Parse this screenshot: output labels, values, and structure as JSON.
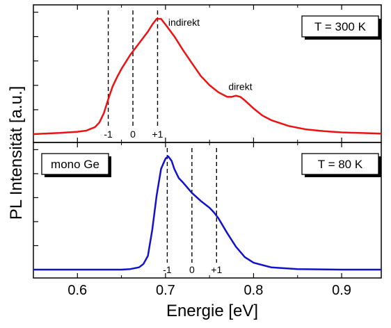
{
  "chart_data": {
    "type": "line",
    "xlabel": "Energie [eV]",
    "ylabel": "PL Intensität [a.u.]",
    "xlim": [
      0.55,
      0.945
    ],
    "xticks": [
      0.6,
      0.7,
      0.8,
      0.9
    ],
    "xtick_labels": [
      "0.6",
      "0.7",
      "0.8",
      "0.9"
    ],
    "panels": [
      {
        "position": "top",
        "color": "#ee1111",
        "temperature_label": "T = 300 K",
        "ylim": [
          0,
          1.05
        ],
        "x": [
          0.55,
          0.58,
          0.6,
          0.61,
          0.62,
          0.625,
          0.63,
          0.635,
          0.64,
          0.645,
          0.65,
          0.66,
          0.67,
          0.68,
          0.685,
          0.69,
          0.695,
          0.7,
          0.71,
          0.72,
          0.73,
          0.74,
          0.75,
          0.76,
          0.77,
          0.775,
          0.78,
          0.785,
          0.79,
          0.8,
          0.81,
          0.82,
          0.84,
          0.86,
          0.88,
          0.9,
          0.92,
          0.945
        ],
        "values": [
          0.0,
          0.01,
          0.02,
          0.03,
          0.06,
          0.1,
          0.18,
          0.3,
          0.41,
          0.49,
          0.56,
          0.68,
          0.78,
          0.88,
          0.94,
          0.99,
          0.99,
          0.94,
          0.84,
          0.72,
          0.61,
          0.5,
          0.42,
          0.36,
          0.32,
          0.32,
          0.33,
          0.32,
          0.29,
          0.22,
          0.16,
          0.12,
          0.07,
          0.04,
          0.025,
          0.015,
          0.01,
          0.005
        ],
        "dashed_lines": [
          {
            "x": 0.635,
            "label": "-1"
          },
          {
            "x": 0.663,
            "label": "0"
          },
          {
            "x": 0.691,
            "label": "+1"
          }
        ],
        "annotations": [
          {
            "text": "indirekt",
            "x": 0.721,
            "y": 0.93
          },
          {
            "text": "direkt",
            "x": 0.785,
            "y": 0.38
          }
        ]
      },
      {
        "position": "bottom",
        "color": "#1111cc",
        "temperature_label": "T = 80 K",
        "sample_label": "mono Ge",
        "ylim": [
          0,
          1.05
        ],
        "x": [
          0.55,
          0.6,
          0.65,
          0.66,
          0.67,
          0.675,
          0.68,
          0.685,
          0.69,
          0.695,
          0.7,
          0.703,
          0.707,
          0.71,
          0.715,
          0.72,
          0.73,
          0.74,
          0.75,
          0.755,
          0.76,
          0.77,
          0.78,
          0.79,
          0.8,
          0.82,
          0.85,
          0.9,
          0.945
        ],
        "values": [
          0.0,
          0.0,
          0.0,
          0.005,
          0.02,
          0.05,
          0.12,
          0.35,
          0.65,
          0.88,
          0.97,
          0.99,
          0.95,
          0.88,
          0.8,
          0.76,
          0.67,
          0.6,
          0.54,
          0.5,
          0.45,
          0.32,
          0.2,
          0.11,
          0.06,
          0.02,
          0.005,
          0.0,
          0.0
        ],
        "dashed_lines": [
          {
            "x": 0.702,
            "label": "-1"
          },
          {
            "x": 0.73,
            "label": "0"
          },
          {
            "x": 0.758,
            "label": "+1"
          }
        ]
      }
    ]
  }
}
